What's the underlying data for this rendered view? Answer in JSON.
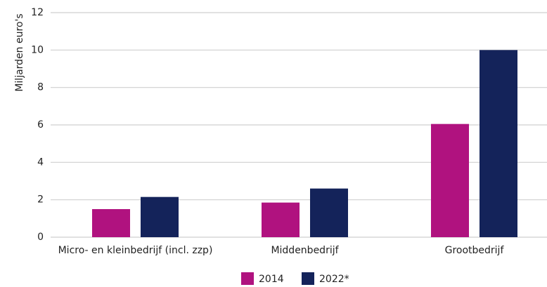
{
  "chart_data": {
    "type": "bar",
    "ylabel": "Miljarden euro's",
    "categories": [
      "Micro- en kleinbedrijf (incl. zzp)",
      "Middenbedrijf",
      "Grootbedrijf"
    ],
    "series": [
      {
        "name": "2014",
        "color": "#b0127f",
        "values": [
          1.5,
          1.85,
          6.05
        ]
      },
      {
        "name": "2022*",
        "color": "#14235a",
        "values": [
          2.15,
          2.6,
          10
        ]
      }
    ],
    "ylim": [
      0,
      12
    ],
    "yticks": [
      0,
      2,
      4,
      6,
      8,
      10,
      12
    ],
    "grid": true,
    "legend": "bottom"
  }
}
